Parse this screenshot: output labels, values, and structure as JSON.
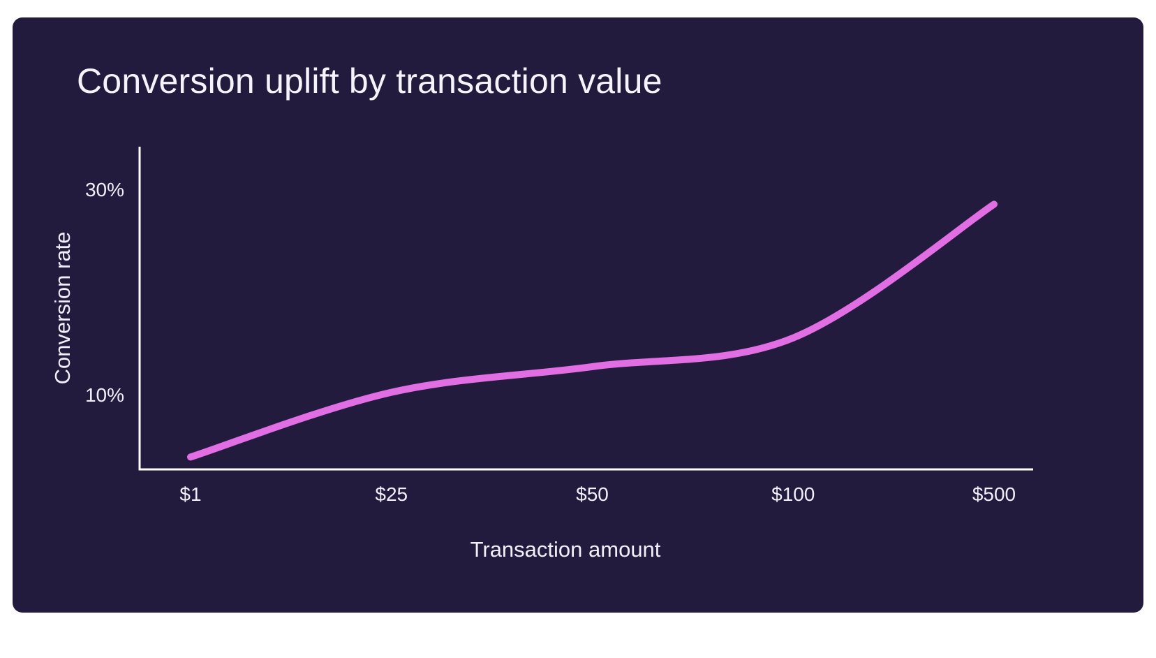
{
  "card": {
    "background": "#221b3e"
  },
  "chart_data": {
    "type": "line",
    "title": "Conversion uplift by transaction value",
    "xlabel": "Transaction amount",
    "ylabel": "Conversion rate",
    "categories": [
      "$1",
      "$25",
      "$50",
      "$100",
      "$500"
    ],
    "series": [
      {
        "name": "Conversion rate",
        "values": [
          4.0,
          10.3,
          12.8,
          15.6,
          28.6
        ]
      }
    ],
    "unit": "%",
    "y_ticks": [
      {
        "value": 10,
        "label": "10%"
      },
      {
        "value": 30,
        "label": "30%"
      }
    ],
    "ylim": [
      2.8,
      34.2
    ],
    "grid": false,
    "legend": false,
    "line_color": "#e26ee3",
    "axis_color": "#ffffff",
    "label_color": "#f2effa",
    "title_color": "#f6f3fc"
  }
}
